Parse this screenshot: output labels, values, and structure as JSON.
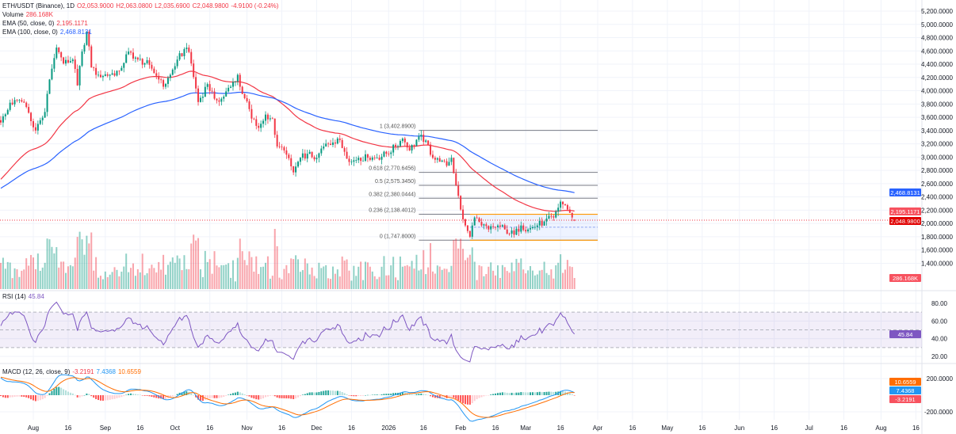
{
  "legend": {
    "symbol": "ETH/USDT (Binance), 1D",
    "open": "O2,053.9000",
    "high": "H2,063.0800",
    "low": "L2,035.6900",
    "close": "C2,048.9800",
    "change": "-4.9100 (-0.24%)",
    "volume_label": "Volume",
    "volume_value": "286.168K",
    "ema50_label": "EMA (50, close, 0)",
    "ema50_value": "2,195.1171",
    "ema100_label": "EMA (100, close, 0)",
    "ema100_value": "2,468.8131",
    "rsi_label": "RSI (14)",
    "rsi_value": "45.84",
    "macd_label": "MACD (12, 26, close, 9)",
    "macd_hist": "-3.2191",
    "macd_line": "7.4368",
    "macd_signal": "10.6559"
  },
  "colors": {
    "up": "#089981",
    "down": "#f23645",
    "ema50": "#f23645",
    "ema100": "#2962ff",
    "rsi": "#7e57c2",
    "macd": "#2196f3",
    "signal": "#ff6d00",
    "fib": "#787b86",
    "range": "#ff9800"
  },
  "axis": {
    "price_ticks": [
      "5,200.0000",
      "5,000.0000",
      "4,800.0000",
      "4,600.0000",
      "4,400.0000",
      "4,200.0000",
      "4,000.0000",
      "3,800.0000",
      "3,600.0000",
      "3,400.0000",
      "3,200.0000",
      "3,000.0000",
      "2,800.0000",
      "2,600.0000",
      "2,400.0000",
      "2,200.0000",
      "2,000.0000",
      "1,800.0000",
      "1,600.0000",
      "1,400.0000"
    ],
    "rsi_ticks": [
      "80.00",
      "60.00",
      "40.00",
      "20.00"
    ],
    "macd_ticks": [
      "200.0000",
      "-200.0000"
    ],
    "time_ticks": [
      {
        "label": "Aug",
        "date": "2025-08-01"
      },
      {
        "label": "16",
        "date": "2025-08-16"
      },
      {
        "label": "Sep",
        "date": "2025-09-01"
      },
      {
        "label": "16",
        "date": "2025-09-16"
      },
      {
        "label": "Oct",
        "date": "2025-10-01"
      },
      {
        "label": "16",
        "date": "2025-10-16"
      },
      {
        "label": "Nov",
        "date": "2025-11-01"
      },
      {
        "label": "16",
        "date": "2025-11-16"
      },
      {
        "label": "Dec",
        "date": "2025-12-01"
      },
      {
        "label": "16",
        "date": "2025-12-16"
      },
      {
        "label": "2026",
        "date": "2026-01-01"
      },
      {
        "label": "16",
        "date": "2026-01-16"
      },
      {
        "label": "Feb",
        "date": "2026-02-01"
      },
      {
        "label": "16",
        "date": "2026-02-16"
      },
      {
        "label": "Mar",
        "date": "2026-03-01"
      },
      {
        "label": "16",
        "date": "2026-03-16"
      },
      {
        "label": "Apr",
        "date": "2026-04-01"
      },
      {
        "label": "16",
        "date": "2026-04-16"
      },
      {
        "label": "May",
        "date": "2026-05-01"
      },
      {
        "label": "16",
        "date": "2026-05-16"
      },
      {
        "label": "Jun",
        "date": "2026-06-01"
      },
      {
        "label": "16",
        "date": "2026-06-16"
      },
      {
        "label": "Jul",
        "date": "2026-07-01"
      },
      {
        "label": "16",
        "date": "2026-07-16"
      },
      {
        "label": "Aug",
        "date": "2026-08-01"
      },
      {
        "label": "16",
        "date": "2026-08-16"
      }
    ]
  },
  "badges": {
    "ema100": "2,468.8131",
    "ema50": "2,195.1171",
    "last_price": "2,048.9800",
    "volume": "286.168K",
    "rsi": "45.84",
    "macd_signal": "10.6559",
    "macd_line": "7.4368",
    "macd_hist": "-3.2191"
  },
  "fib": {
    "start": "2026-01-14",
    "end": "2026-04-01",
    "levels": [
      {
        "label": "1 (3,402.8900)",
        "price": 3402.89
      },
      {
        "label": "0.618 (2,770.6456)",
        "price": 2770.6456
      },
      {
        "label": "0.5 (2,575.3450)",
        "price": 2575.345
      },
      {
        "label": "0.382 (2,380.0444)",
        "price": 2380.0444
      },
      {
        "label": "0.236 (2,138.4012)",
        "price": 2138.4012
      },
      {
        "label": "0 (1,747.8000)",
        "price": 1747.8
      }
    ]
  },
  "range_box": {
    "start": "2026-02-05",
    "end": "2026-04-01",
    "top": 2138.4012,
    "bottom": 1747.8
  },
  "chart_data": {
    "type": "candlestick",
    "symbol": "ETH/USDT",
    "interval": "1D",
    "ylim": [
      1300,
      5300
    ],
    "last": {
      "open": 2053.9,
      "high": 2063.08,
      "low": 2035.69,
      "close": 2048.98,
      "volume": "286.168K"
    },
    "close_path": [
      [
        "2025-07-18",
        3521
      ],
      [
        "2025-07-22",
        3820
      ],
      [
        "2025-07-28",
        3820
      ],
      [
        "2025-08-02",
        3400
      ],
      [
        "2025-08-03",
        3500
      ],
      [
        "2025-08-06",
        3680
      ],
      [
        "2025-08-08",
        4170
      ],
      [
        "2025-08-11",
        4650
      ],
      [
        "2025-08-14",
        4410
      ],
      [
        "2025-08-18",
        4470
      ],
      [
        "2025-08-20",
        4080
      ],
      [
        "2025-08-22",
        4590
      ],
      [
        "2025-08-24",
        4890
      ],
      [
        "2025-08-26",
        4350
      ],
      [
        "2025-08-29",
        4240
      ],
      [
        "2025-09-03",
        4240
      ],
      [
        "2025-09-07",
        4300
      ],
      [
        "2025-09-11",
        4590
      ],
      [
        "2025-09-15",
        4470
      ],
      [
        "2025-09-20",
        4390
      ],
      [
        "2025-09-24",
        4170
      ],
      [
        "2025-09-26",
        4060
      ],
      [
        "2025-09-29",
        4240
      ],
      [
        "2025-10-02",
        4470
      ],
      [
        "2025-10-06",
        4650
      ],
      [
        "2025-10-08",
        4410
      ],
      [
        "2025-10-11",
        3830
      ],
      [
        "2025-10-15",
        4100
      ],
      [
        "2025-10-18",
        3880
      ],
      [
        "2025-10-21",
        3880
      ],
      [
        "2025-10-25",
        4060
      ],
      [
        "2025-10-28",
        4240
      ],
      [
        "2025-10-29",
        4060
      ],
      [
        "2025-11-01",
        3840
      ],
      [
        "2025-11-03",
        3580
      ],
      [
        "2025-11-06",
        3440
      ],
      [
        "2025-11-09",
        3640
      ],
      [
        "2025-11-12",
        3580
      ],
      [
        "2025-11-14",
        3160
      ],
      [
        "2025-11-17",
        3100
      ],
      [
        "2025-11-21",
        2770
      ],
      [
        "2025-11-24",
        2990
      ],
      [
        "2025-11-27",
        3050
      ],
      [
        "2025-12-01",
        2990
      ],
      [
        "2025-12-04",
        3160
      ],
      [
        "2025-12-08",
        3220
      ],
      [
        "2025-12-10",
        3280
      ],
      [
        "2025-12-13",
        3080
      ],
      [
        "2025-12-16",
        2930
      ],
      [
        "2025-12-19",
        2990
      ],
      [
        "2025-12-23",
        2990
      ],
      [
        "2025-12-27",
        2990
      ],
      [
        "2025-12-31",
        3050
      ],
      [
        "2026-01-04",
        3160
      ],
      [
        "2026-01-07",
        3280
      ],
      [
        "2026-01-10",
        3100
      ],
      [
        "2026-01-14",
        3310
      ],
      [
        "2026-01-17",
        3250
      ],
      [
        "2026-01-20",
        2990
      ],
      [
        "2026-01-23",
        2930
      ],
      [
        "2026-01-26",
        2870
      ],
      [
        "2026-01-28",
        2990
      ],
      [
        "2026-01-30",
        2570
      ],
      [
        "2026-02-01",
        2210
      ],
      [
        "2026-02-03",
        1970
      ],
      [
        "2026-02-05",
        1800
      ],
      [
        "2026-02-07",
        2090
      ],
      [
        "2026-02-10",
        1970
      ],
      [
        "2026-02-13",
        1910
      ],
      [
        "2026-02-17",
        1970
      ],
      [
        "2026-02-20",
        1910
      ],
      [
        "2026-02-24",
        1830
      ],
      [
        "2026-02-27",
        1970
      ],
      [
        "2026-03-02",
        1910
      ],
      [
        "2026-03-06",
        1970
      ],
      [
        "2026-03-09",
        2030
      ],
      [
        "2026-03-13",
        2090
      ],
      [
        "2026-03-16",
        2330
      ],
      [
        "2026-03-19",
        2210
      ],
      [
        "2026-03-21",
        2090
      ],
      [
        "2026-03-22",
        2048.98
      ]
    ],
    "indicators": [
      "Volume",
      "EMA 50",
      "EMA 100",
      "RSI 14",
      "MACD 12 26 9"
    ],
    "rsi_band": [
      30,
      70
    ]
  }
}
